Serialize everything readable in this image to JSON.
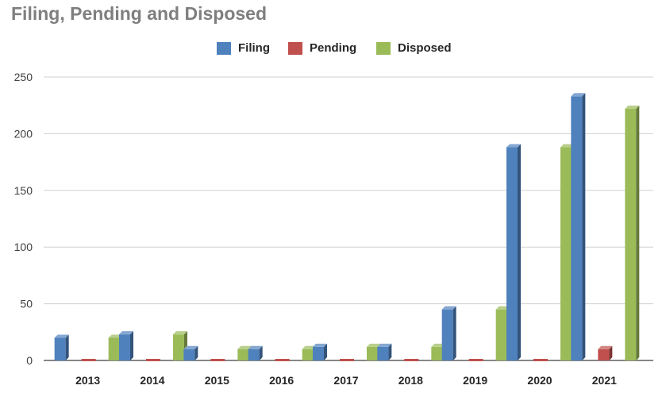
{
  "chart_data": {
    "type": "bar",
    "title": "Filing, Pending and Disposed",
    "xlabel": "",
    "ylabel": "",
    "categories": [
      "2013",
      "2014",
      "2015",
      "2016",
      "2017",
      "2018",
      "2019",
      "2020",
      "2021"
    ],
    "series": [
      {
        "name": "Filing",
        "color": "#4f81bd",
        "values": [
          20,
          23,
          10,
          10,
          12,
          12,
          45,
          188,
          233
        ]
      },
      {
        "name": "Pending",
        "color": "#c0504d",
        "values": [
          0,
          0,
          0,
          0,
          0,
          0,
          0,
          0,
          10
        ]
      },
      {
        "name": "Disposed",
        "color": "#9bbb59",
        "values": [
          20,
          23,
          10,
          10,
          12,
          12,
          45,
          188,
          222
        ]
      }
    ],
    "yticks": [
      0,
      50,
      100,
      150,
      200,
      250
    ],
    "ylim": [
      0,
      250
    ],
    "grid": true,
    "legend_position": "top"
  }
}
